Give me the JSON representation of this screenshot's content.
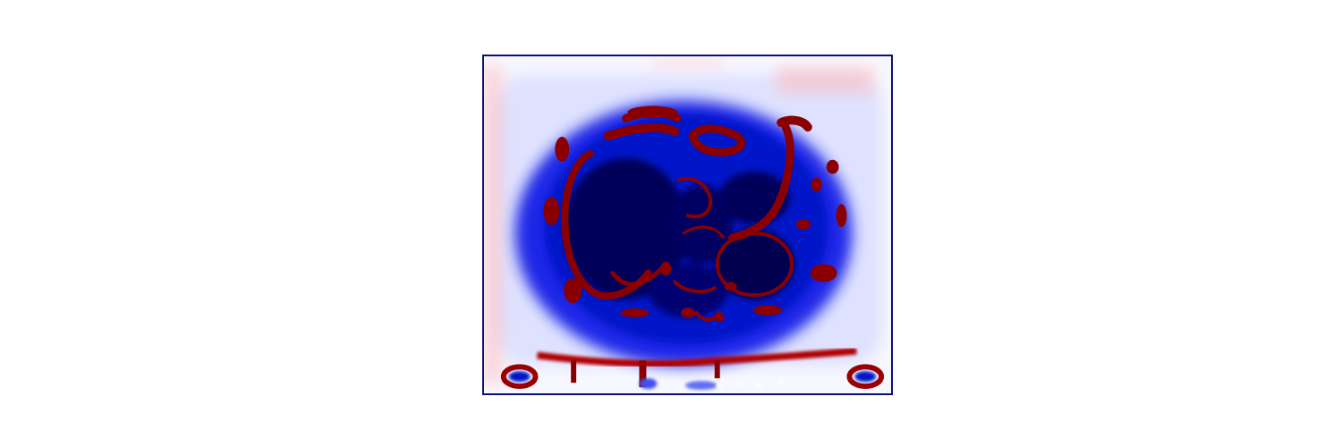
{
  "image": {
    "colormap": "seismic",
    "colors": {
      "frame": "#0b0f7a",
      "dark_blue": "#00004a",
      "blue": "#0010d8",
      "light_blue": "#c8ccff",
      "white": "#ffffff",
      "light_red": "#ffd0d0",
      "dark_red": "#8a0000"
    }
  }
}
